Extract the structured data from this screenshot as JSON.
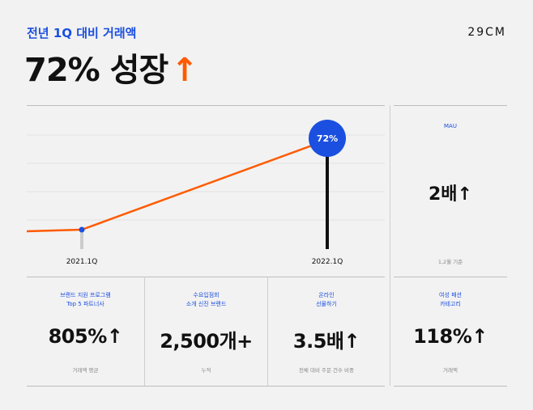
{
  "header": {
    "eyebrow": "전년 1Q 대비 거래액",
    "headline": "72% 성장",
    "headline_arrow": "↑",
    "brand": "29CM"
  },
  "chart_data": {
    "type": "line",
    "x": [
      "2021.1Q",
      "2022.1Q"
    ],
    "series": [
      {
        "values": [
          0,
          72
        ]
      }
    ],
    "point_labels": [
      "",
      "72%"
    ],
    "colors": {
      "line": "#ff5a00",
      "start_dot": "#1a4fe0",
      "end_badge": "#1a4fe0",
      "start_bar": "#cccccc",
      "end_bar": "#111111"
    }
  },
  "mau": {
    "label": "MAU",
    "value": "2배↑",
    "note": "1,2월 기준"
  },
  "stats": [
    {
      "label": "브랜드 지원 프로그램\nTop 5 파트너사",
      "value": "805%↑",
      "note": "거래액 평균"
    },
    {
      "label": "수요입점회\n소개 신진 브랜드",
      "value": "2,500개+",
      "note": "누적"
    },
    {
      "label": "온라인\n선물하기",
      "value": "3.5배↑",
      "note": "전체 대비 주문 건수 비중"
    },
    {
      "label": "여성 패션\n카테고리",
      "value": "118%↑",
      "note": "거래액"
    }
  ]
}
